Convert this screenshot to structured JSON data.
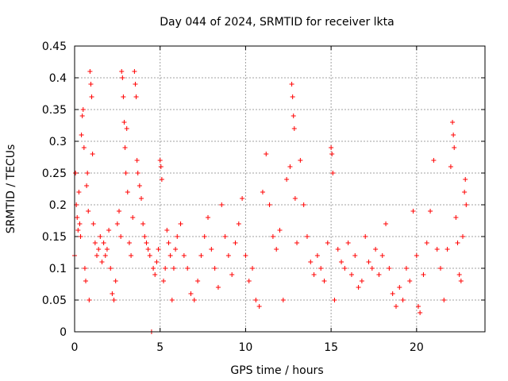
{
  "chart_data": {
    "type": "scatter",
    "title": "Day 044 of 2024, SRMTID for receiver lkta",
    "xlabel": "GPS time / hours",
    "ylabel": "SRMTID / TECUs",
    "xlim": [
      0,
      24
    ],
    "ylim": [
      0,
      0.45
    ],
    "xticks": [
      0,
      5,
      10,
      15,
      20
    ],
    "xtick_labels": [
      "0",
      "5",
      "10",
      "15",
      "20"
    ],
    "yticks": [
      0,
      0.05,
      0.1,
      0.15,
      0.2,
      0.25,
      0.3,
      0.35,
      0.4,
      0.45
    ],
    "ytick_labels": [
      "0",
      "0.05",
      "0.1",
      "0.15",
      "0.2",
      "0.25",
      "0.3",
      "0.35",
      "0.4",
      "0.45"
    ],
    "grid": true,
    "marker": "+",
    "color": "#ff0000",
    "series": [
      {
        "name": "SRMTID",
        "points": [
          [
            0.0,
            0.12
          ],
          [
            0.05,
            0.25
          ],
          [
            0.1,
            0.2
          ],
          [
            0.15,
            0.18
          ],
          [
            0.2,
            0.16
          ],
          [
            0.25,
            0.22
          ],
          [
            0.3,
            0.17
          ],
          [
            0.35,
            0.15
          ],
          [
            0.4,
            0.31
          ],
          [
            0.45,
            0.34
          ],
          [
            0.5,
            0.35
          ],
          [
            0.55,
            0.29
          ],
          [
            0.6,
            0.1
          ],
          [
            0.65,
            0.08
          ],
          [
            0.7,
            0.23
          ],
          [
            0.75,
            0.25
          ],
          [
            0.8,
            0.19
          ],
          [
            0.85,
            0.05
          ],
          [
            0.9,
            0.41
          ],
          [
            0.95,
            0.39
          ],
          [
            1.0,
            0.37
          ],
          [
            1.05,
            0.28
          ],
          [
            1.1,
            0.17
          ],
          [
            1.2,
            0.14
          ],
          [
            1.3,
            0.12
          ],
          [
            1.4,
            0.13
          ],
          [
            1.5,
            0.15
          ],
          [
            1.6,
            0.11
          ],
          [
            1.7,
            0.14
          ],
          [
            1.8,
            0.12
          ],
          [
            1.9,
            0.13
          ],
          [
            2.0,
            0.16
          ],
          [
            2.1,
            0.1
          ],
          [
            2.2,
            0.06
          ],
          [
            2.3,
            0.05
          ],
          [
            2.4,
            0.08
          ],
          [
            2.5,
            0.17
          ],
          [
            2.6,
            0.19
          ],
          [
            2.7,
            0.15
          ],
          [
            2.75,
            0.41
          ],
          [
            2.8,
            0.4
          ],
          [
            2.85,
            0.37
          ],
          [
            2.9,
            0.33
          ],
          [
            2.95,
            0.29
          ],
          [
            3.0,
            0.25
          ],
          [
            3.05,
            0.32
          ],
          [
            3.1,
            0.22
          ],
          [
            3.2,
            0.14
          ],
          [
            3.3,
            0.12
          ],
          [
            3.4,
            0.18
          ],
          [
            3.5,
            0.41
          ],
          [
            3.55,
            0.39
          ],
          [
            3.6,
            0.37
          ],
          [
            3.65,
            0.27
          ],
          [
            3.7,
            0.25
          ],
          [
            3.8,
            0.23
          ],
          [
            3.9,
            0.21
          ],
          [
            4.0,
            0.17
          ],
          [
            4.1,
            0.15
          ],
          [
            4.2,
            0.14
          ],
          [
            4.3,
            0.13
          ],
          [
            4.4,
            0.12
          ],
          [
            4.5,
            0.0
          ],
          [
            4.6,
            0.1
          ],
          [
            4.7,
            0.09
          ],
          [
            4.8,
            0.11
          ],
          [
            4.9,
            0.13
          ],
          [
            5.0,
            0.27
          ],
          [
            5.05,
            0.26
          ],
          [
            5.1,
            0.24
          ],
          [
            5.2,
            0.08
          ],
          [
            5.3,
            0.1
          ],
          [
            5.4,
            0.16
          ],
          [
            5.5,
            0.14
          ],
          [
            5.6,
            0.12
          ],
          [
            5.7,
            0.05
          ],
          [
            5.8,
            0.1
          ],
          [
            5.9,
            0.13
          ],
          [
            6.0,
            0.15
          ],
          [
            6.2,
            0.17
          ],
          [
            6.4,
            0.12
          ],
          [
            6.6,
            0.1
          ],
          [
            6.8,
            0.06
          ],
          [
            7.0,
            0.05
          ],
          [
            7.2,
            0.08
          ],
          [
            7.4,
            0.12
          ],
          [
            7.6,
            0.15
          ],
          [
            7.8,
            0.18
          ],
          [
            8.0,
            0.13
          ],
          [
            8.2,
            0.1
          ],
          [
            8.4,
            0.07
          ],
          [
            8.6,
            0.2
          ],
          [
            8.8,
            0.15
          ],
          [
            9.0,
            0.12
          ],
          [
            9.2,
            0.09
          ],
          [
            9.4,
            0.14
          ],
          [
            9.6,
            0.17
          ],
          [
            9.8,
            0.21
          ],
          [
            10.0,
            0.12
          ],
          [
            10.2,
            0.08
          ],
          [
            10.4,
            0.1
          ],
          [
            10.6,
            0.05
          ],
          [
            10.8,
            0.04
          ],
          [
            11.0,
            0.22
          ],
          [
            11.2,
            0.28
          ],
          [
            11.4,
            0.2
          ],
          [
            11.6,
            0.15
          ],
          [
            11.8,
            0.13
          ],
          [
            12.0,
            0.16
          ],
          [
            12.2,
            0.05
          ],
          [
            12.4,
            0.24
          ],
          [
            12.6,
            0.26
          ],
          [
            12.7,
            0.39
          ],
          [
            12.75,
            0.37
          ],
          [
            12.8,
            0.34
          ],
          [
            12.85,
            0.32
          ],
          [
            12.9,
            0.21
          ],
          [
            13.0,
            0.14
          ],
          [
            13.2,
            0.27
          ],
          [
            13.4,
            0.2
          ],
          [
            13.6,
            0.15
          ],
          [
            13.8,
            0.11
          ],
          [
            14.0,
            0.09
          ],
          [
            14.2,
            0.12
          ],
          [
            14.4,
            0.1
          ],
          [
            14.6,
            0.08
          ],
          [
            14.8,
            0.14
          ],
          [
            15.0,
            0.29
          ],
          [
            15.05,
            0.28
          ],
          [
            15.1,
            0.25
          ],
          [
            15.2,
            0.05
          ],
          [
            15.4,
            0.13
          ],
          [
            15.6,
            0.11
          ],
          [
            15.8,
            0.1
          ],
          [
            16.0,
            0.14
          ],
          [
            16.2,
            0.09
          ],
          [
            16.4,
            0.12
          ],
          [
            16.6,
            0.07
          ],
          [
            16.8,
            0.08
          ],
          [
            17.0,
            0.15
          ],
          [
            17.2,
            0.11
          ],
          [
            17.4,
            0.1
          ],
          [
            17.6,
            0.13
          ],
          [
            17.8,
            0.09
          ],
          [
            18.0,
            0.12
          ],
          [
            18.2,
            0.17
          ],
          [
            18.4,
            0.1
          ],
          [
            18.6,
            0.06
          ],
          [
            18.8,
            0.04
          ],
          [
            19.0,
            0.07
          ],
          [
            19.2,
            0.05
          ],
          [
            19.4,
            0.1
          ],
          [
            19.6,
            0.08
          ],
          [
            19.8,
            0.19
          ],
          [
            20.0,
            0.12
          ],
          [
            20.1,
            0.04
          ],
          [
            20.2,
            0.03
          ],
          [
            20.4,
            0.09
          ],
          [
            20.6,
            0.14
          ],
          [
            20.8,
            0.19
          ],
          [
            21.0,
            0.27
          ],
          [
            21.2,
            0.13
          ],
          [
            21.4,
            0.1
          ],
          [
            21.6,
            0.05
          ],
          [
            21.8,
            0.13
          ],
          [
            22.0,
            0.26
          ],
          [
            22.1,
            0.33
          ],
          [
            22.15,
            0.31
          ],
          [
            22.2,
            0.29
          ],
          [
            22.3,
            0.18
          ],
          [
            22.4,
            0.14
          ],
          [
            22.5,
            0.09
          ],
          [
            22.6,
            0.08
          ],
          [
            22.7,
            0.15
          ],
          [
            22.8,
            0.22
          ],
          [
            22.85,
            0.24
          ],
          [
            22.9,
            0.2
          ]
        ]
      }
    ]
  }
}
